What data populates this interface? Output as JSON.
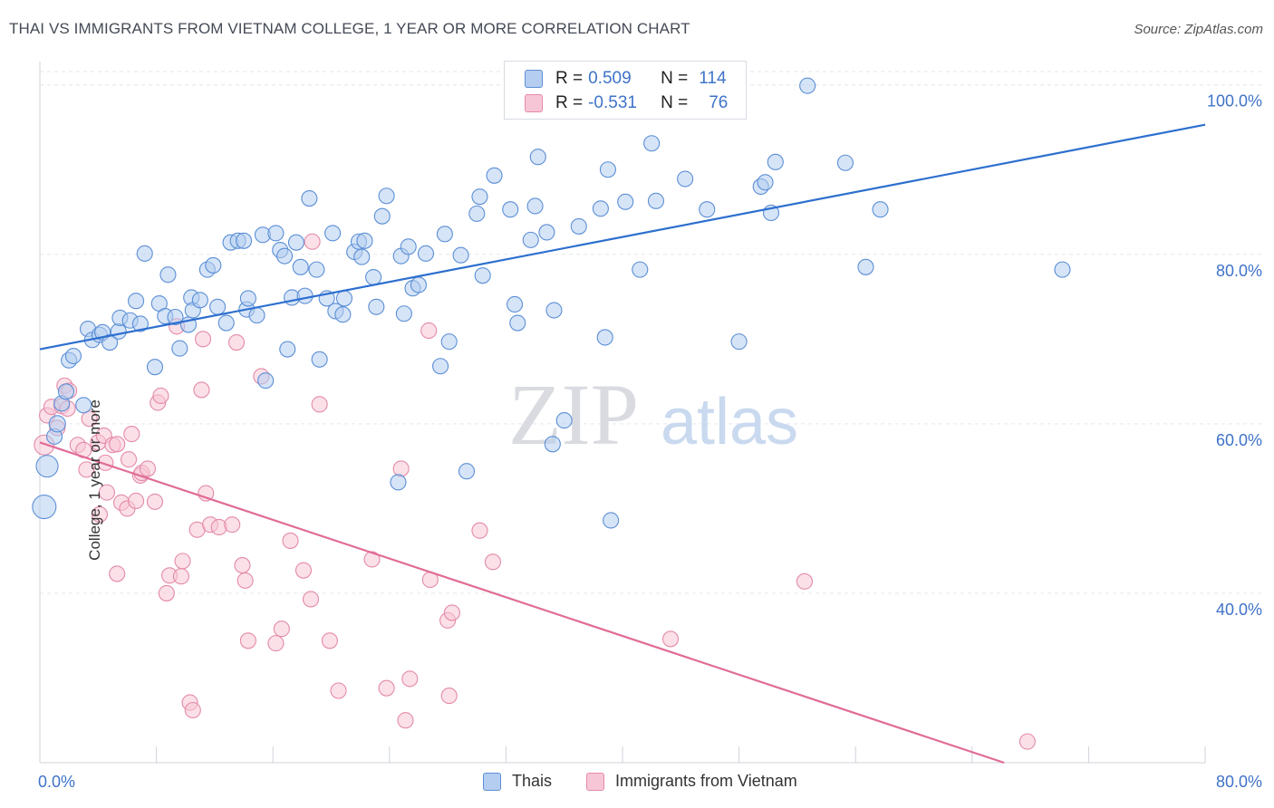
{
  "title": "THAI VS IMMIGRANTS FROM VIETNAM COLLEGE, 1 YEAR OR MORE CORRELATION CHART",
  "source": "Source: ZipAtlas.com",
  "watermark": {
    "zip": "ZIP",
    "atlas": "atlas"
  },
  "legend": {
    "r_label": "R =",
    "n_label": "N =",
    "rows": [
      {
        "r": "0.509",
        "n": "114"
      },
      {
        "r": "-0.531",
        "n": "76"
      }
    ]
  },
  "bottom_legend": [
    "Thais",
    "Immigrants from Vietnam"
  ],
  "colors": {
    "thais": "#5b8fd6",
    "thais_fill": "#b4cdf0",
    "vietnam": "#e48aa8",
    "vietnam_fill": "#f7c6d6",
    "trend_blue": "#2d6fcf",
    "trend_pink": "#e06c97",
    "tick": "#3f73c8"
  },
  "chart_data": {
    "type": "scatter",
    "title": "THAI VS IMMIGRANTS FROM VIETNAM COLLEGE, 1 YEAR OR MORE CORRELATION CHART",
    "xlabel": "",
    "ylabel": "College, 1 year or more",
    "xlim": [
      0,
      80
    ],
    "ylim": [
      20,
      102
    ],
    "x_tick_labels": [
      "0.0%",
      "80.0%"
    ],
    "y_ticks": [
      40,
      60,
      80,
      100
    ],
    "y_tick_labels": [
      "40.0%",
      "60.0%",
      "80.0%",
      "100.0%"
    ],
    "grid": true,
    "legend_position": "top-center",
    "series": [
      {
        "name": "Thais",
        "trend": {
          "x": [
            0,
            80
          ],
          "y": [
            68.8,
            95.3
          ]
        },
        "points": [
          [
            0.3,
            50.2
          ],
          [
            0.5,
            55.0
          ],
          [
            1.0,
            58.5
          ],
          [
            1.2,
            60.0
          ],
          [
            1.5,
            62.4
          ],
          [
            1.8,
            63.8
          ],
          [
            2.0,
            67.5
          ],
          [
            2.3,
            68.0
          ],
          [
            3.0,
            62.2
          ],
          [
            3.3,
            71.2
          ],
          [
            3.6,
            69.9
          ],
          [
            4.1,
            70.5
          ],
          [
            4.3,
            70.8
          ],
          [
            4.8,
            69.6
          ],
          [
            5.4,
            70.9
          ],
          [
            5.5,
            72.5
          ],
          [
            6.2,
            72.2
          ],
          [
            6.6,
            74.5
          ],
          [
            6.9,
            71.8
          ],
          [
            7.2,
            80.1
          ],
          [
            7.9,
            66.7
          ],
          [
            8.2,
            74.2
          ],
          [
            8.6,
            72.7
          ],
          [
            8.8,
            77.6
          ],
          [
            9.3,
            72.6
          ],
          [
            9.6,
            68.9
          ],
          [
            10.2,
            71.7
          ],
          [
            10.4,
            74.9
          ],
          [
            10.5,
            73.4
          ],
          [
            11.0,
            74.6
          ],
          [
            11.5,
            78.2
          ],
          [
            11.9,
            78.7
          ],
          [
            12.2,
            73.8
          ],
          [
            12.8,
            71.9
          ],
          [
            13.1,
            81.4
          ],
          [
            13.6,
            81.6
          ],
          [
            14.0,
            81.6
          ],
          [
            14.2,
            73.5
          ],
          [
            14.3,
            74.8
          ],
          [
            14.9,
            72.8
          ],
          [
            15.3,
            82.3
          ],
          [
            15.5,
            65.1
          ],
          [
            16.2,
            82.5
          ],
          [
            16.5,
            80.5
          ],
          [
            16.8,
            79.8
          ],
          [
            17.0,
            68.8
          ],
          [
            17.3,
            74.9
          ],
          [
            17.6,
            81.4
          ],
          [
            17.9,
            78.5
          ],
          [
            18.2,
            75.1
          ],
          [
            18.5,
            86.6
          ],
          [
            19.0,
            78.2
          ],
          [
            19.2,
            67.6
          ],
          [
            19.7,
            74.8
          ],
          [
            20.1,
            82.5
          ],
          [
            20.3,
            73.3
          ],
          [
            20.8,
            72.9
          ],
          [
            20.9,
            74.8
          ],
          [
            21.6,
            80.3
          ],
          [
            21.9,
            81.5
          ],
          [
            22.1,
            79.7
          ],
          [
            22.3,
            81.6
          ],
          [
            22.9,
            77.3
          ],
          [
            23.1,
            73.8
          ],
          [
            23.5,
            84.5
          ],
          [
            23.8,
            86.9
          ],
          [
            24.8,
            79.8
          ],
          [
            25.0,
            73.0
          ],
          [
            25.3,
            80.9
          ],
          [
            25.6,
            76.0
          ],
          [
            26.0,
            76.4
          ],
          [
            26.5,
            80.1
          ],
          [
            27.5,
            66.8
          ],
          [
            27.8,
            82.4
          ],
          [
            28.1,
            69.7
          ],
          [
            28.9,
            79.9
          ],
          [
            29.3,
            54.4
          ],
          [
            30.0,
            84.8
          ],
          [
            30.2,
            86.8
          ],
          [
            30.4,
            77.5
          ],
          [
            31.2,
            89.3
          ],
          [
            32.3,
            85.3
          ],
          [
            32.6,
            74.1
          ],
          [
            32.8,
            71.9
          ],
          [
            33.7,
            81.7
          ],
          [
            34.0,
            85.7
          ],
          [
            34.2,
            91.5
          ],
          [
            34.8,
            82.6
          ],
          [
            35.2,
            57.6
          ],
          [
            35.3,
            73.4
          ],
          [
            36.0,
            60.4
          ],
          [
            37.0,
            83.3
          ],
          [
            38.5,
            85.4
          ],
          [
            38.8,
            70.2
          ],
          [
            39.0,
            90.0
          ],
          [
            39.2,
            48.6
          ],
          [
            40.2,
            86.2
          ],
          [
            41.2,
            78.2
          ],
          [
            42.0,
            93.1
          ],
          [
            42.3,
            86.3
          ],
          [
            44.3,
            88.9
          ],
          [
            45.8,
            85.3
          ],
          [
            48.0,
            69.7
          ],
          [
            49.5,
            88.0
          ],
          [
            49.8,
            88.5
          ],
          [
            50.2,
            84.9
          ],
          [
            50.5,
            90.9
          ],
          [
            52.7,
            99.9
          ],
          [
            55.3,
            90.8
          ],
          [
            56.7,
            78.5
          ],
          [
            57.7,
            85.3
          ],
          [
            70.2,
            78.2
          ],
          [
            24.6,
            53.1
          ]
        ]
      },
      {
        "name": "Immigrants from Vietnam",
        "trend": {
          "x": [
            0,
            66.2
          ],
          "y": [
            57.8,
            20.0
          ]
        },
        "points": [
          [
            0.3,
            57.5
          ],
          [
            0.5,
            61.0
          ],
          [
            0.8,
            62.0
          ],
          [
            1.2,
            59.5
          ],
          [
            1.5,
            62.1
          ],
          [
            1.7,
            64.5
          ],
          [
            1.9,
            61.8
          ],
          [
            2.0,
            63.9
          ],
          [
            2.6,
            57.5
          ],
          [
            3.0,
            56.9
          ],
          [
            3.2,
            54.6
          ],
          [
            3.4,
            60.6
          ],
          [
            4.0,
            57.8
          ],
          [
            4.1,
            49.3
          ],
          [
            4.4,
            58.6
          ],
          [
            4.5,
            55.4
          ],
          [
            4.6,
            51.9
          ],
          [
            5.0,
            57.5
          ],
          [
            5.3,
            57.6
          ],
          [
            5.3,
            42.3
          ],
          [
            5.6,
            50.7
          ],
          [
            6.0,
            50.0
          ],
          [
            6.1,
            55.8
          ],
          [
            6.3,
            58.8
          ],
          [
            6.6,
            50.9
          ],
          [
            6.9,
            53.9
          ],
          [
            7.0,
            54.2
          ],
          [
            7.4,
            54.7
          ],
          [
            7.9,
            50.8
          ],
          [
            8.1,
            62.5
          ],
          [
            8.3,
            63.3
          ],
          [
            8.7,
            40.0
          ],
          [
            8.9,
            42.1
          ],
          [
            9.4,
            71.5
          ],
          [
            9.7,
            42.0
          ],
          [
            9.8,
            43.8
          ],
          [
            10.3,
            27.1
          ],
          [
            10.5,
            26.2
          ],
          [
            10.8,
            47.5
          ],
          [
            11.1,
            64.0
          ],
          [
            11.2,
            70.0
          ],
          [
            11.4,
            51.8
          ],
          [
            11.7,
            48.1
          ],
          [
            12.3,
            47.8
          ],
          [
            13.2,
            48.1
          ],
          [
            13.5,
            69.6
          ],
          [
            13.9,
            43.3
          ],
          [
            14.1,
            41.5
          ],
          [
            14.3,
            34.4
          ],
          [
            15.2,
            65.6
          ],
          [
            16.2,
            34.1
          ],
          [
            16.6,
            35.8
          ],
          [
            17.2,
            46.2
          ],
          [
            18.1,
            42.7
          ],
          [
            18.6,
            39.3
          ],
          [
            18.7,
            81.5
          ],
          [
            19.2,
            62.3
          ],
          [
            19.9,
            34.4
          ],
          [
            20.5,
            28.5
          ],
          [
            22.8,
            44.0
          ],
          [
            23.8,
            28.8
          ],
          [
            24.8,
            54.7
          ],
          [
            25.1,
            25.0
          ],
          [
            25.4,
            29.9
          ],
          [
            26.7,
            71.0
          ],
          [
            26.8,
            41.6
          ],
          [
            28.0,
            36.8
          ],
          [
            28.3,
            37.7
          ],
          [
            28.1,
            27.9
          ],
          [
            30.2,
            47.4
          ],
          [
            31.1,
            43.7
          ],
          [
            43.3,
            34.6
          ],
          [
            52.5,
            41.4
          ],
          [
            67.8,
            22.5
          ]
        ]
      }
    ]
  }
}
